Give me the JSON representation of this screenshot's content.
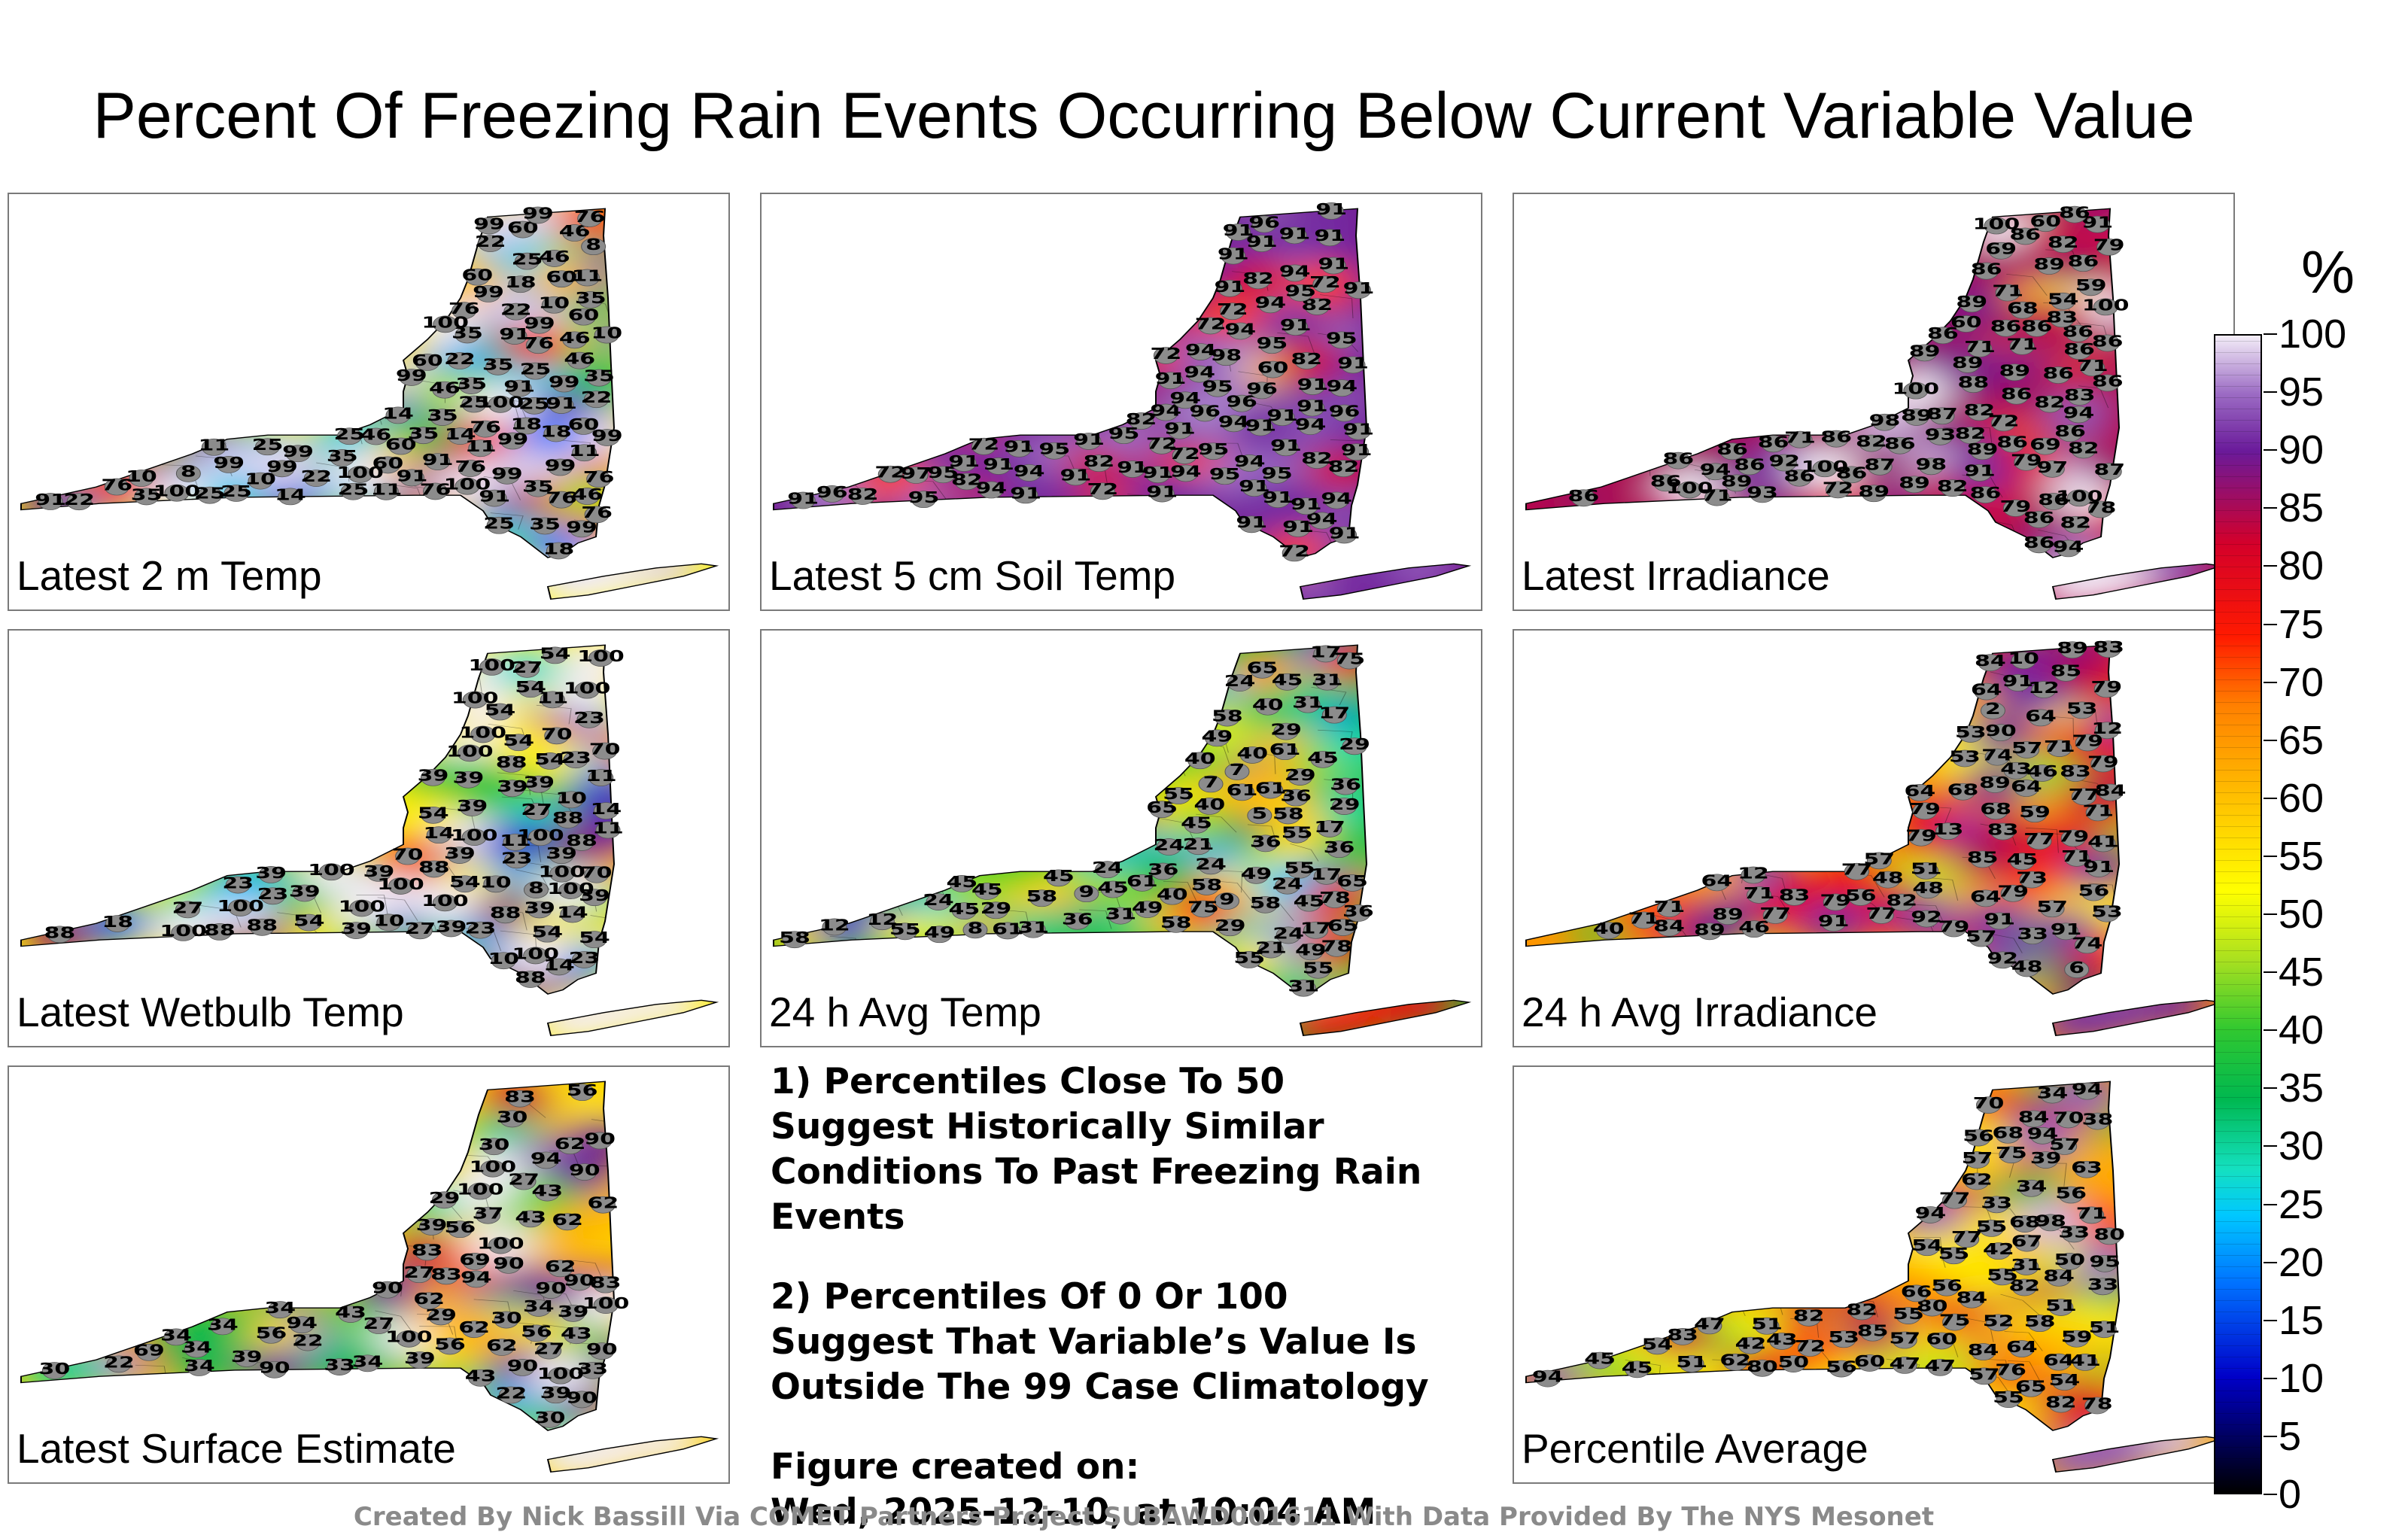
{
  "title": "Percent Of Freezing Rain Events Occurring Below Current Variable Value",
  "panels": [
    {
      "id": "p1",
      "label": "Latest 2 m Temp",
      "color_stops": [
        [
          0,
          "#2fc040"
        ],
        [
          0.25,
          "#8fe060"
        ],
        [
          0.45,
          "#20c8ff"
        ],
        [
          0.62,
          "#1050ff"
        ],
        [
          0.78,
          "#0010a0"
        ],
        [
          1,
          "#00008a"
        ]
      ],
      "values": [
        35,
        46,
        35,
        35,
        10,
        14,
        10,
        10,
        25,
        35,
        60,
        60,
        18,
        8,
        11,
        10,
        22,
        22,
        11,
        25,
        22,
        22,
        18,
        91,
        99,
        91,
        99,
        91,
        60,
        60,
        35,
        25,
        14,
        11,
        22,
        25,
        46,
        35,
        11,
        8,
        11,
        99,
        99,
        99,
        99,
        76,
        99,
        35,
        76,
        76,
        46,
        25,
        35,
        76,
        46,
        35,
        99,
        99,
        76,
        99,
        91,
        46,
        76,
        25,
        60,
        60,
        35,
        25,
        25,
        76,
        91,
        60,
        91,
        76,
        99,
        99,
        25,
        60,
        35,
        22,
        18,
        14,
        18,
        25,
        46,
        76,
        46,
        91,
        99,
        76,
        100,
        100,
        99,
        100,
        100,
        100
      ]
    },
    {
      "id": "p2",
      "label": "Latest 5 cm Soil Temp",
      "color_stops": [
        [
          0,
          "#7a2aa8"
        ],
        [
          0.4,
          "#8a50c0"
        ],
        [
          0.7,
          "#a06ad0"
        ],
        [
          1,
          "#c79be0"
        ]
      ],
      "values": [
        82,
        91,
        91,
        94,
        72,
        91,
        94,
        94,
        97,
        72,
        94,
        82,
        96,
        82,
        72,
        91,
        95,
        96,
        91,
        60,
        95,
        94,
        98,
        91,
        82,
        91,
        95,
        91,
        94,
        94,
        91,
        72,
        96,
        95,
        91,
        91,
        96,
        94,
        95,
        94,
        94,
        95,
        91,
        91,
        91,
        91,
        94,
        95,
        91,
        91,
        91,
        91,
        91,
        94,
        95,
        91,
        72,
        91,
        94,
        91,
        95,
        91,
        91,
        91,
        91,
        72,
        91,
        91,
        91,
        94,
        95,
        94,
        82,
        72,
        91,
        82,
        96,
        72,
        82,
        91,
        72,
        72,
        82,
        91,
        91,
        82,
        96,
        94,
        91,
        91,
        95
      ]
    },
    {
      "id": "p3",
      "label": "Latest Irradiance",
      "color_stops": [
        [
          0,
          "#ff3000"
        ],
        [
          0.2,
          "#c8002a"
        ],
        [
          0.5,
          "#7a1ca0"
        ],
        [
          0.75,
          "#6a2aa8"
        ],
        [
          1,
          "#b48ed8"
        ]
      ],
      "values": [
        86,
        91,
        89,
        89,
        82,
        71,
        86,
        71,
        89,
        72,
        69,
        60,
        68,
        88,
        82,
        89,
        59,
        93,
        86,
        86,
        54,
        86,
        72,
        82,
        69,
        86,
        60,
        71,
        86,
        71,
        87,
        94,
        86,
        86,
        82,
        86,
        86,
        71,
        86,
        82,
        82,
        71,
        86,
        93,
        86,
        86,
        86,
        97,
        86,
        86,
        86,
        89,
        86,
        86,
        89,
        86,
        79,
        86,
        82,
        89,
        89,
        79,
        86,
        100,
        98,
        82,
        78,
        86,
        89,
        86,
        83,
        83,
        79,
        86,
        89,
        91,
        98,
        86,
        94,
        87,
        87,
        92,
        100,
        100,
        86,
        94,
        100,
        100,
        100
      ]
    },
    {
      "id": "p4",
      "label": "Latest Wetbulb Temp",
      "color_stops": [
        [
          0,
          "#30c030"
        ],
        [
          0.25,
          "#90e060"
        ],
        [
          0.45,
          "#20c8ff"
        ],
        [
          0.62,
          "#1050ff"
        ],
        [
          0.8,
          "#0010a0"
        ],
        [
          1,
          "#00008a"
        ]
      ],
      "values": [
        39,
        54,
        39,
        39,
        10,
        14,
        10,
        10,
        23,
        70,
        54,
        39,
        27,
        18,
        8,
        10,
        23,
        39,
        23,
        39,
        23,
        14,
        11,
        100,
        100,
        88,
        100,
        100,
        70,
        54,
        39,
        54,
        14,
        11,
        11,
        54,
        54,
        39,
        39,
        27,
        100,
        100,
        100,
        88,
        54,
        88,
        39,
        39,
        27,
        39,
        23,
        88,
        11,
        88,
        100,
        88,
        100,
        100,
        100,
        54,
        27,
        70,
        54,
        39,
        23,
        39,
        14,
        23,
        70,
        100,
        54,
        88,
        88,
        88,
        100,
        100,
        100,
        100,
        100
      ]
    },
    {
      "id": "p5",
      "label": "24 h Avg Temp",
      "color_stops": [
        [
          0,
          "#ffd000"
        ],
        [
          0.3,
          "#d8e020"
        ],
        [
          0.55,
          "#30c060"
        ],
        [
          0.75,
          "#18b8ff"
        ],
        [
          0.9,
          "#1050ff"
        ],
        [
          1,
          "#0020c0"
        ]
      ],
      "values": [
        36,
        36,
        29,
        29,
        45,
        40,
        17,
        9,
        17,
        5,
        58,
        45,
        17,
        7,
        24,
        36,
        45,
        29,
        12,
        17,
        7,
        8,
        24,
        65,
        65,
        61,
        61,
        55,
        49,
        36,
        29,
        12,
        24,
        9,
        40,
        65,
        61,
        61,
        55,
        49,
        36,
        24,
        31,
        24,
        17,
        40,
        58,
        45,
        49,
        58,
        55,
        45,
        40,
        31,
        24,
        21,
        40,
        36,
        65,
        58,
        49,
        45,
        31,
        29,
        29,
        31,
        49,
        45,
        55,
        55,
        58,
        45,
        36,
        31,
        24,
        21,
        45,
        55,
        58,
        61,
        58,
        78,
        75,
        78,
        75
      ]
    },
    {
      "id": "p6",
      "label": "24 h Avg Irradiance",
      "color_stops": [
        [
          0,
          "#1040ff"
        ],
        [
          0.12,
          "#20c8b0"
        ],
        [
          0.3,
          "#40c840"
        ],
        [
          0.5,
          "#ffd000"
        ],
        [
          0.7,
          "#ff6000"
        ],
        [
          0.85,
          "#d0002a"
        ],
        [
          1,
          "#6a1aa8"
        ]
      ],
      "values": [
        71,
        71,
        68,
        56,
        68,
        57,
        64,
        57,
        13,
        12,
        53,
        71,
        48,
        53,
        51,
        12,
        2,
        12,
        48,
        79,
        59,
        74,
        10,
        6,
        71,
        79,
        83,
        33,
        46,
        45,
        48,
        53,
        64,
        64,
        77,
        77,
        79,
        77,
        83,
        79,
        41,
        43,
        57,
        56,
        53,
        64,
        64,
        77,
        79,
        83,
        84,
        79,
        40,
        57,
        64,
        73,
        74,
        77,
        71,
        71,
        79,
        79,
        89,
        85,
        84,
        83,
        82,
        79,
        84,
        89,
        89,
        91,
        46,
        89,
        91,
        90,
        85,
        91,
        91,
        92,
        91,
        92
      ]
    },
    {
      "id": "p7",
      "label": "Latest Surface Estimate",
      "color_stops": [
        [
          0,
          "#ffd000"
        ],
        [
          0.3,
          "#b8e030"
        ],
        [
          0.55,
          "#40c850"
        ],
        [
          0.75,
          "#30c8a0"
        ],
        [
          1,
          "#20c8ff"
        ]
      ],
      "values": [
        39,
        43,
        39,
        39,
        22,
        30,
        27,
        37,
        34,
        62,
        56,
        34,
        43,
        27,
        22,
        34,
        33,
        33,
        27,
        27,
        22,
        30,
        90,
        94,
        90,
        83,
        62,
        69,
        56,
        39,
        30,
        29,
        30,
        34,
        90,
        90,
        94,
        83,
        62,
        56,
        43,
        39,
        30,
        29,
        83,
        34,
        100,
        90,
        94,
        62,
        43,
        69,
        56,
        43,
        56,
        34,
        62,
        62,
        90,
        83,
        34,
        62,
        90,
        90,
        90,
        90,
        100,
        100,
        100,
        100,
        100
      ]
    },
    {
      "id": "p8",
      "label": "Percentile Average",
      "color_stops": [
        [
          0,
          "#c8101a"
        ],
        [
          0.3,
          "#ff4010"
        ],
        [
          0.5,
          "#ff9000"
        ],
        [
          0.7,
          "#ffd800"
        ],
        [
          0.85,
          "#c0e030"
        ],
        [
          1,
          "#40c040"
        ]
      ],
      "values": [
        56,
        62,
        57,
        54,
        39,
        52,
        43,
        42,
        33,
        50,
        33,
        58,
        45,
        60,
        54,
        34,
        31,
        34,
        45,
        68,
        67,
        62,
        51,
        41,
        38,
        33,
        51,
        54,
        77,
        84,
        78,
        80,
        68,
        70,
        55,
        47,
        47,
        42,
        51,
        82,
        82,
        82,
        84,
        75,
        65,
        60,
        70,
        57,
        55,
        47,
        53,
        82,
        77,
        84,
        80,
        63,
        75,
        55,
        57,
        51,
        56,
        80,
        84,
        56,
        64,
        55,
        71,
        66,
        59,
        55,
        57,
        76,
        85,
        56,
        72,
        50,
        64,
        83,
        94,
        95,
        98,
        94,
        94,
        94
      ]
    }
  ],
  "notes": [
    "1) Percentiles Close To 50 Suggest Historically Similar Conditions To Past Freezing Rain Events",
    "2) Percentiles Of 0 Or 100 Suggest That Variable’s Value Is Outside The 99 Case Climatology"
  ],
  "figure_created_label": "Figure created on:",
  "figure_created_date": "Wed, 2025-12-10, at 10:04 AM",
  "colorbar": {
    "unit": "%",
    "ticks": [
      "100",
      "95",
      "90",
      "85",
      "80",
      "75",
      "70",
      "65",
      "60",
      "55",
      "50",
      "45",
      "40",
      "35",
      "30",
      "25",
      "20",
      "15",
      "10",
      "5",
      "0"
    ]
  },
  "footer": "Created By Nick Bassill Via COMET Partners Project SUBAWD001611 With Data Provided By The NYS Mesonet"
}
